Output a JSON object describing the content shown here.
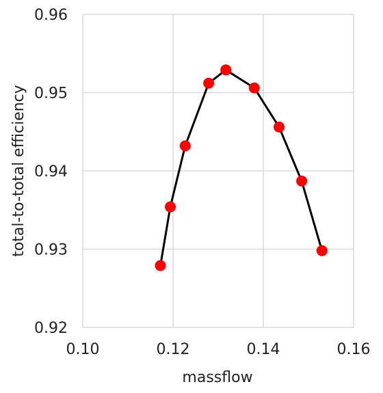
{
  "chart_data": {
    "type": "scatter",
    "title": "",
    "xlabel": "massflow",
    "ylabel": "total-to-total efficiency",
    "xlim": [
      0.1,
      0.16
    ],
    "ylim": [
      0.92,
      0.96
    ],
    "x_ticks": [
      "0.10",
      "0.12",
      "0.14",
      "0.16"
    ],
    "y_ticks": [
      "0.92",
      "0.93",
      "0.94",
      "0.95",
      "0.96"
    ],
    "grid": true,
    "legend": "none",
    "series": [
      {
        "marker_color": "#ff0000",
        "line_color": "#000000",
        "points": [
          {
            "x": 0.1172,
            "y": 0.9279
          },
          {
            "x": 0.1194,
            "y": 0.9354
          },
          {
            "x": 0.1227,
            "y": 0.9432
          },
          {
            "x": 0.1279,
            "y": 0.9512
          },
          {
            "x": 0.1317,
            "y": 0.9529
          },
          {
            "x": 0.138,
            "y": 0.9506
          },
          {
            "x": 0.1435,
            "y": 0.9456
          },
          {
            "x": 0.1485,
            "y": 0.9387
          },
          {
            "x": 0.153,
            "y": 0.9298
          }
        ]
      }
    ]
  }
}
